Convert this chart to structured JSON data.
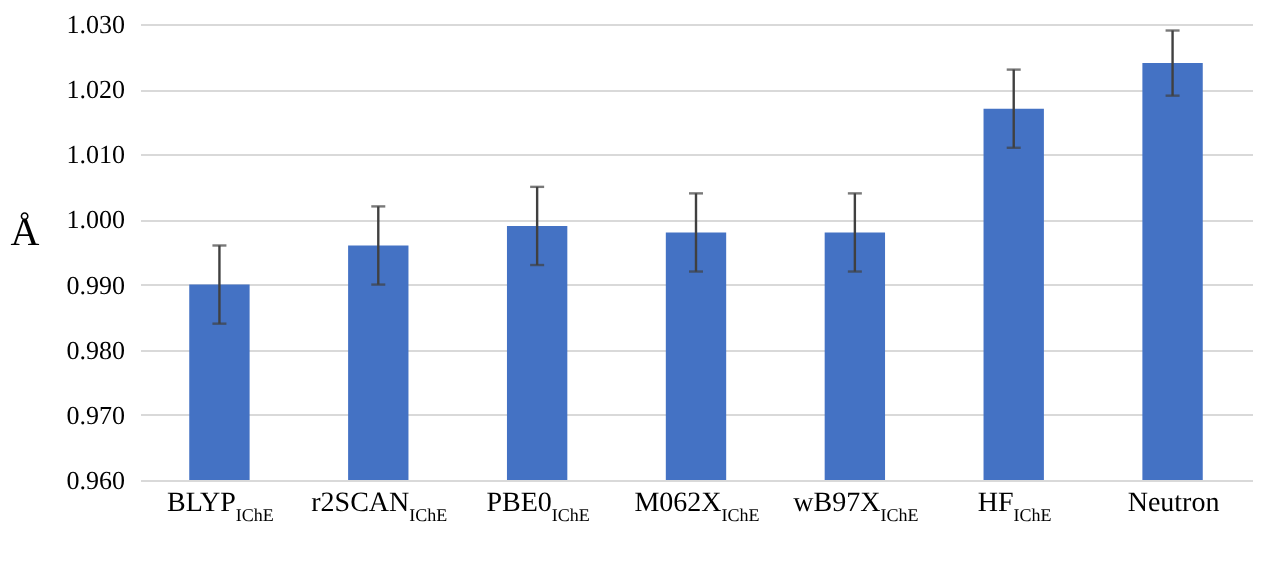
{
  "chart_data": {
    "type": "bar",
    "ylabel": "Å",
    "categories": [
      "BLYP$_{IChE}$",
      "r2SCAN$_{IChE}$",
      "PBE0$_{IChE}$",
      "M062X$_{IChE}$",
      "wB97X$_{IChE}$",
      "HF$_{IChE}$",
      "Neutron"
    ],
    "values": [
      0.99,
      0.996,
      0.999,
      0.998,
      0.998,
      1.017,
      1.024
    ],
    "errors": [
      0.006,
      0.006,
      0.006,
      0.006,
      0.006,
      0.006,
      0.005
    ],
    "color": "#4472c4",
    "ylim": [
      0.96,
      1.03
    ],
    "yticks": [
      {
        "value": 0.96,
        "label": "0.960"
      },
      {
        "value": 0.97,
        "label": "0.970"
      },
      {
        "value": 0.98,
        "label": "0.980"
      },
      {
        "value": 0.99,
        "label": "0.990"
      },
      {
        "value": 1.0,
        "label": "1.000"
      },
      {
        "value": 1.01,
        "label": "1.010"
      },
      {
        "value": 1.02,
        "label": "1.020"
      },
      {
        "value": 1.03,
        "label": "1.030"
      }
    ],
    "grid": "y"
  }
}
